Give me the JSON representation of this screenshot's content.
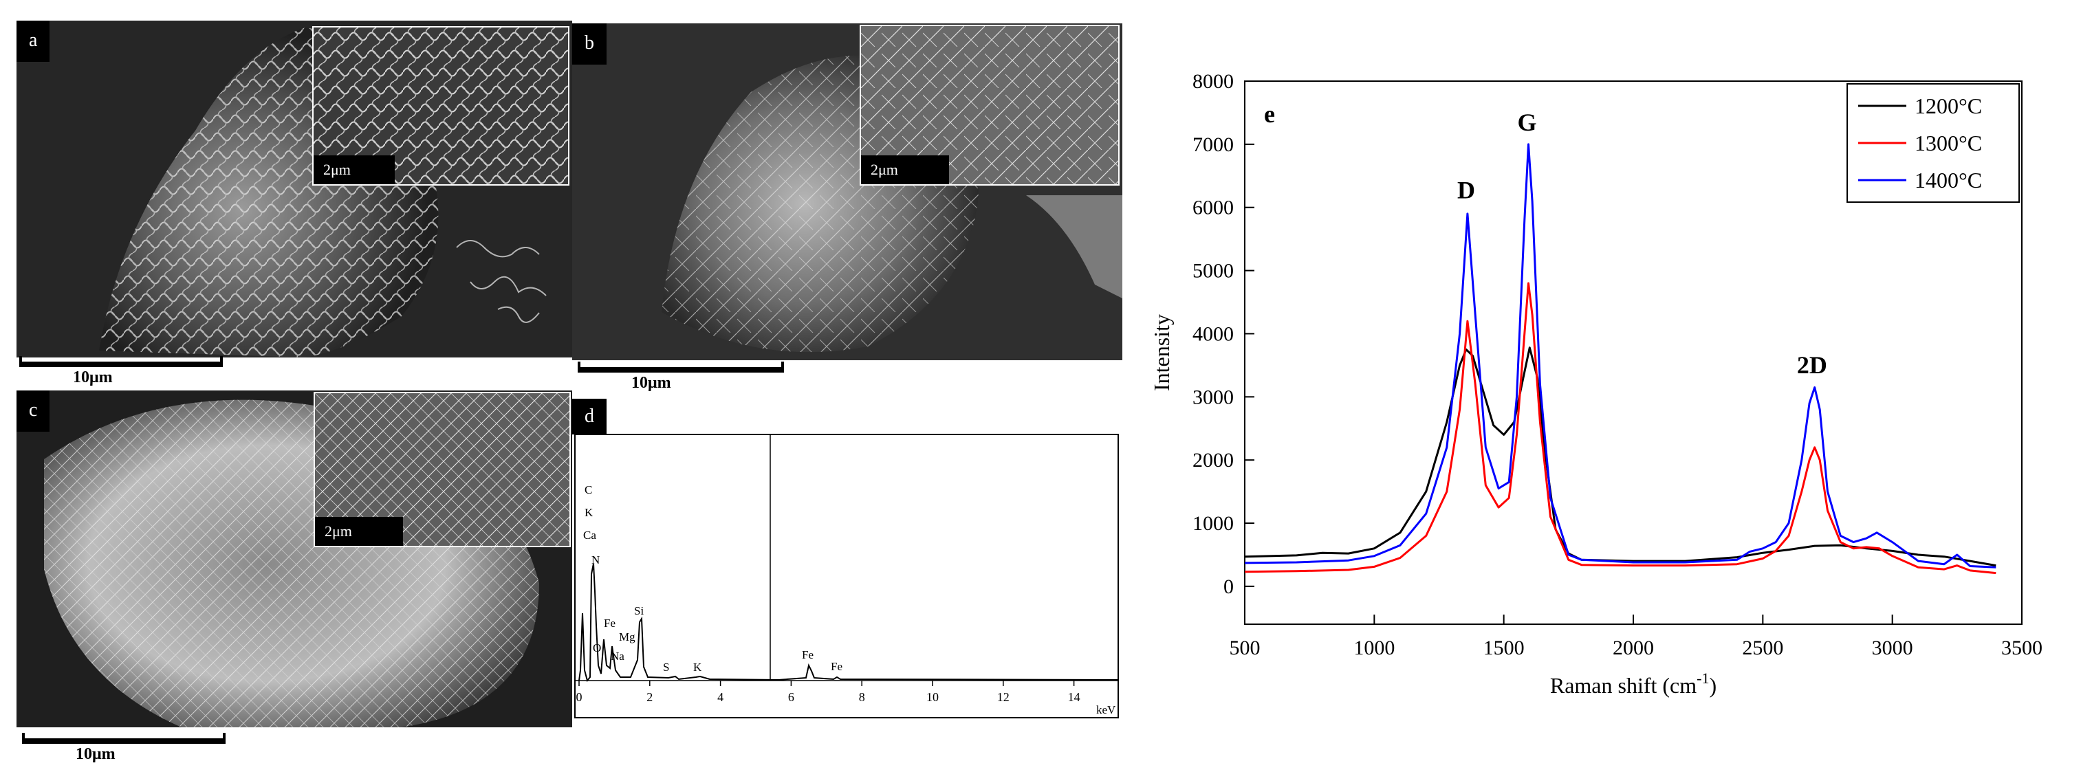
{
  "panels": {
    "a": {
      "tag": "a",
      "inset_scale": "2μm",
      "scale": "10μm"
    },
    "b": {
      "tag": "b",
      "inset_scale": "2μm",
      "scale": "10μm"
    },
    "c": {
      "tag": "c",
      "inset_scale": "2μm",
      "scale": "10μm"
    },
    "d": {
      "tag": "d",
      "xunit": "keV",
      "xticks": [
        0,
        2,
        4,
        6,
        8,
        10,
        12,
        14
      ],
      "labels": [
        "C",
        "K",
        "Ca",
        "N",
        "Fe",
        "Mg",
        "O",
        "Na",
        "Si",
        "S",
        "K",
        "Fe",
        "Fe"
      ]
    }
  },
  "chart_data": {
    "type": "line",
    "panel_tag": "e",
    "xlabel": "Raman shift (cm-1)",
    "xlabel_main": "Raman shift (cm",
    "xlabel_sup": "-1",
    "xlabel_tail": ")",
    "ylabel": "Intensity",
    "xlim": [
      500,
      3500
    ],
    "ylim": [
      -600,
      8000
    ],
    "xticks": [
      500,
      1000,
      1500,
      2000,
      2500,
      3000,
      3500
    ],
    "yticks": [
      0,
      1000,
      2000,
      3000,
      4000,
      5000,
      6000,
      7000,
      8000
    ],
    "legend_position": "top-right",
    "annotations": [
      {
        "text": "D",
        "x": 1355,
        "y": 5950
      },
      {
        "text": "G",
        "x": 1590,
        "y": 7020
      },
      {
        "text": "2D",
        "x": 2690,
        "y": 3180
      }
    ],
    "series": [
      {
        "name": "1200°C",
        "color": "#000000",
        "x": [
          500,
          700,
          800,
          900,
          1000,
          1100,
          1200,
          1280,
          1330,
          1355,
          1380,
          1420,
          1460,
          1500,
          1540,
          1570,
          1600,
          1630,
          1660,
          1700,
          1750,
          1800,
          2000,
          2200,
          2400,
          2500,
          2600,
          2700,
          2800,
          2900,
          3000,
          3100,
          3200,
          3300,
          3400
        ],
        "y": [
          470,
          490,
          530,
          520,
          600,
          850,
          1500,
          2600,
          3500,
          3750,
          3650,
          3100,
          2550,
          2400,
          2600,
          3200,
          3780,
          3300,
          2100,
          900,
          520,
          420,
          400,
          400,
          460,
          530,
          580,
          640,
          650,
          600,
          560,
          500,
          470,
          400,
          330
        ]
      },
      {
        "name": "1300°C",
        "color": "#ff0000",
        "x": [
          500,
          700,
          900,
          1000,
          1100,
          1200,
          1280,
          1330,
          1360,
          1390,
          1430,
          1480,
          1520,
          1550,
          1580,
          1595,
          1610,
          1640,
          1680,
          1750,
          1800,
          2000,
          2200,
          2400,
          2500,
          2550,
          2600,
          2650,
          2680,
          2700,
          2720,
          2750,
          2800,
          2850,
          2900,
          2950,
          3000,
          3100,
          3200,
          3250,
          3300,
          3400
        ],
        "y": [
          230,
          240,
          260,
          310,
          450,
          800,
          1500,
          2800,
          4200,
          3200,
          1600,
          1250,
          1400,
          2400,
          4000,
          4800,
          4300,
          2600,
          1100,
          420,
          340,
          330,
          330,
          350,
          440,
          560,
          800,
          1500,
          2000,
          2200,
          2000,
          1200,
          700,
          600,
          620,
          600,
          480,
          300,
          270,
          330,
          250,
          210
        ]
      },
      {
        "name": "1400°C",
        "color": "#0000ff",
        "x": [
          500,
          700,
          900,
          1000,
          1100,
          1200,
          1280,
          1330,
          1360,
          1390,
          1430,
          1480,
          1520,
          1550,
          1580,
          1595,
          1610,
          1640,
          1680,
          1750,
          1800,
          2000,
          2200,
          2400,
          2450,
          2500,
          2550,
          2600,
          2650,
          2680,
          2700,
          2720,
          2750,
          2800,
          2850,
          2900,
          2940,
          3000,
          3100,
          3200,
          3250,
          3300,
          3400
        ],
        "y": [
          370,
          380,
          410,
          480,
          650,
          1150,
          2200,
          4000,
          5900,
          4300,
          2200,
          1550,
          1650,
          3000,
          5800,
          7000,
          6100,
          3200,
          1400,
          500,
          420,
          380,
          380,
          420,
          550,
          600,
          700,
          1000,
          2000,
          2900,
          3150,
          2800,
          1500,
          800,
          700,
          760,
          850,
          700,
          400,
          350,
          500,
          320,
          300
        ]
      }
    ]
  }
}
